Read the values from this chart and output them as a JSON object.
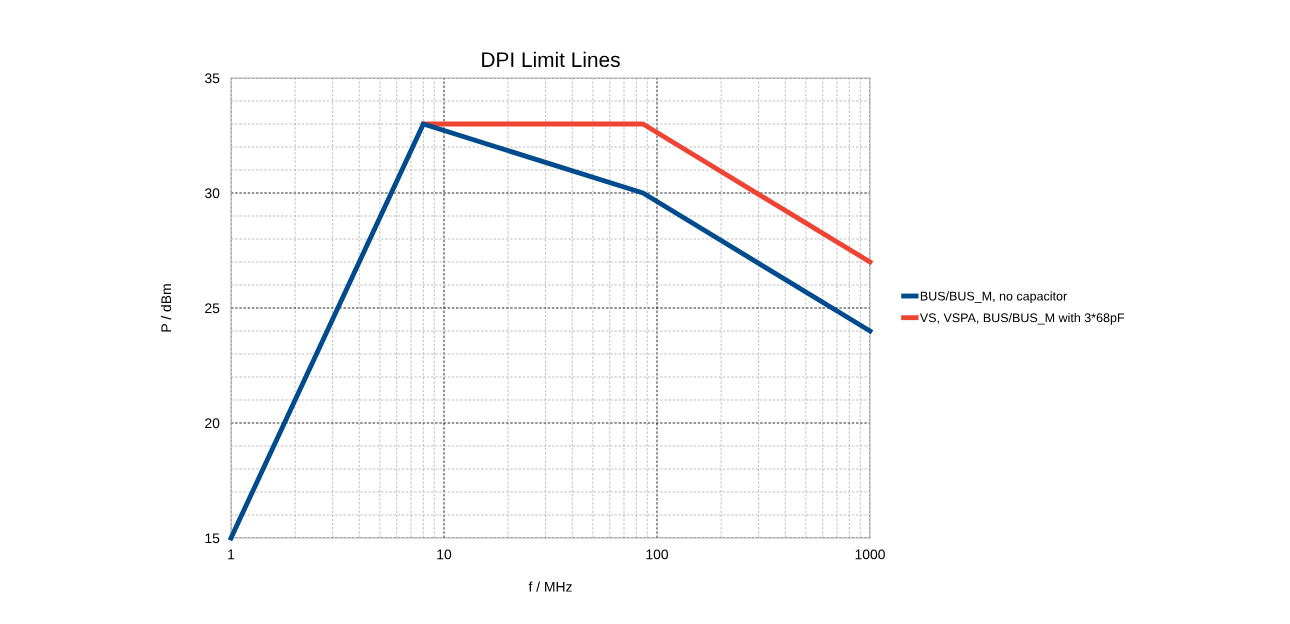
{
  "chart_data": {
    "type": "line",
    "title": "DPI Limit Lines",
    "xlabel": "f / MHz",
    "ylabel": "P / dBm",
    "log": "x",
    "xlim": [
      1,
      1000
    ],
    "xticks": [
      1,
      10,
      100,
      1000
    ],
    "ylim": [
      15,
      35
    ],
    "yticks": [
      15,
      20,
      25,
      30,
      35
    ],
    "grid": true,
    "legend": "right",
    "marker": "none",
    "line_style": "solid",
    "series": [
      {
        "name": "VS, VSPA, BUS/BUS_M with 3*68pF",
        "color": "#ee4433",
        "x": [
          8,
          86,
          1000
        ],
        "values": [
          33,
          33,
          27
        ]
      },
      {
        "name": "BUS/BUS_M, no capacitor",
        "color": "#004b8d",
        "x": [
          1,
          8,
          86,
          1000
        ],
        "values": [
          15,
          33,
          30,
          24
        ]
      }
    ]
  }
}
